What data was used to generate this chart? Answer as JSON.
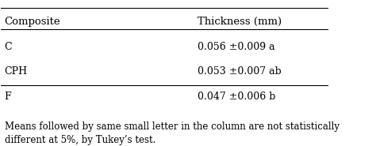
{
  "col1_header": "Composite",
  "col2_header": "Thickness (mm)",
  "rows": [
    {
      "composite": "C",
      "thickness": "0.056 ±0.009 a"
    },
    {
      "composite": "CPH",
      "thickness": "0.053 ±0.007 ab"
    },
    {
      "composite": "F",
      "thickness": "0.047 ±0.006 b"
    }
  ],
  "footnote_line1": "Means followed by same small letter in the column are not statistically",
  "footnote_line2": "different at 5%, by Tukey’s test.",
  "background_color": "#ffffff",
  "text_color": "#000000",
  "font_size": 9,
  "header_font_size": 9.5
}
